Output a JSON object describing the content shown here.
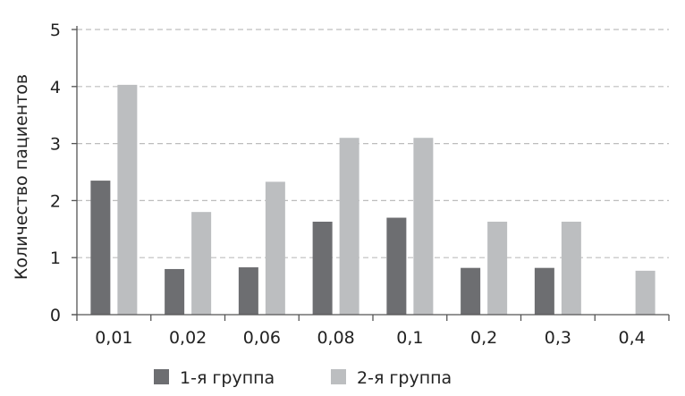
{
  "chart_data": {
    "type": "bar",
    "title": "",
    "xlabel": "",
    "ylabel": "Количество пациентов",
    "categories": [
      "0,01",
      "0,02",
      "0,06",
      "0,08",
      "0,1",
      "0,2",
      "0,3",
      "0,4"
    ],
    "series": [
      {
        "name": "1-я группа",
        "color": "#6d6e71",
        "values": [
          2.35,
          0.8,
          0.83,
          1.63,
          1.7,
          0.82,
          0.82,
          0
        ]
      },
      {
        "name": "2-я группа",
        "color": "#bcbec0",
        "values": [
          4.03,
          1.8,
          2.33,
          3.1,
          3.1,
          1.63,
          1.63,
          0.77
        ]
      }
    ],
    "ylim": [
      0,
      5
    ],
    "yticks": [
      "0",
      "1",
      "2",
      "3",
      "4",
      "5"
    ],
    "grid": true,
    "legend_position": "bottom"
  }
}
